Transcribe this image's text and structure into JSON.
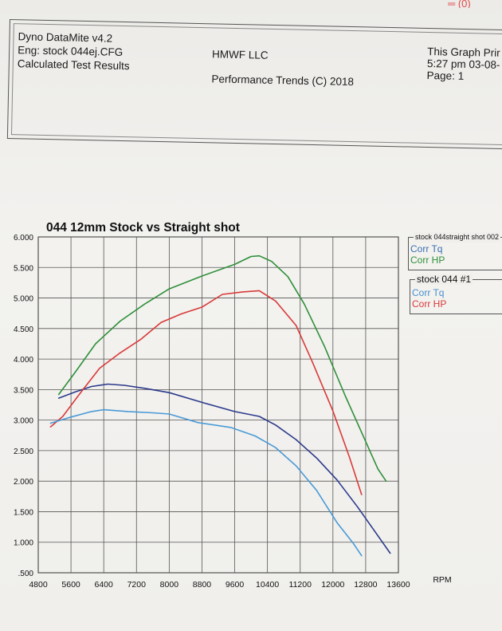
{
  "corner_mark": "═ (0)",
  "header": {
    "left_line1": "Dyno DataMite v4.2",
    "left_line2": "Eng: stock 044ej.CFG",
    "left_line3": "Calculated Test Results",
    "center_line1": "HMWF LLC",
    "center_line2": "Performance Trends (C) 2018",
    "right_line1": "This Graph Prir",
    "right_line2": "5:27 pm 03-08-",
    "right_line3": "Page: 1"
  },
  "legend": [
    {
      "title": "stock 044straight shot  002",
      "entries": [
        {
          "label": "Corr Tq",
          "color": "#3a6fb0"
        },
        {
          "label": "Corr HP",
          "color": "#2f8f3a"
        }
      ]
    },
    {
      "title": "stock 044   #1",
      "entries": [
        {
          "label": "Corr Tq",
          "color": "#4a90d0"
        },
        {
          "label": "Corr HP",
          "color": "#d83a3a"
        }
      ]
    }
  ],
  "chart_data": {
    "type": "line",
    "title": "044 12mm Stock vs Straight shot",
    "xlabel": "RPM",
    "ylabel": "",
    "xlim": [
      4800,
      13600
    ],
    "ylim": [
      0.5,
      6.0
    ],
    "xticks": [
      "4800",
      "5600",
      "6400",
      "7200",
      "8000",
      "8800",
      "9600",
      "10400",
      "11200",
      "12000",
      "12800",
      "13600"
    ],
    "yticks": [
      ".500",
      "1.000",
      "1.500",
      "2.000",
      "2.500",
      "3.000",
      "3.500",
      "4.000",
      "4.500",
      "5.000",
      "5.500",
      "6.000"
    ],
    "grid": true,
    "series": [
      {
        "name": "stock 044straight shot Corr HP",
        "color": "#2f8f3a",
        "points": [
          [
            5300,
            3.42
          ],
          [
            5700,
            3.78
          ],
          [
            6200,
            4.25
          ],
          [
            6800,
            4.62
          ],
          [
            7400,
            4.9
          ],
          [
            8000,
            5.15
          ],
          [
            8800,
            5.36
          ],
          [
            9600,
            5.55
          ],
          [
            10000,
            5.68
          ],
          [
            10200,
            5.69
          ],
          [
            10500,
            5.6
          ],
          [
            10900,
            5.35
          ],
          [
            11300,
            4.9
          ],
          [
            11800,
            4.2
          ],
          [
            12300,
            3.4
          ],
          [
            12800,
            2.65
          ],
          [
            13100,
            2.2
          ],
          [
            13300,
            2.0
          ]
        ]
      },
      {
        "name": "stock 044straight shot Corr Tq",
        "color": "#2c3a8c",
        "points": [
          [
            5300,
            3.36
          ],
          [
            5700,
            3.46
          ],
          [
            6100,
            3.55
          ],
          [
            6500,
            3.59
          ],
          [
            6900,
            3.57
          ],
          [
            7400,
            3.52
          ],
          [
            8000,
            3.45
          ],
          [
            8800,
            3.29
          ],
          [
            9600,
            3.14
          ],
          [
            10200,
            3.06
          ],
          [
            10600,
            2.92
          ],
          [
            11100,
            2.68
          ],
          [
            11600,
            2.38
          ],
          [
            12100,
            2.02
          ],
          [
            12600,
            1.58
          ],
          [
            13000,
            1.2
          ],
          [
            13400,
            0.82
          ]
        ]
      },
      {
        "name": "stock 044 #1 Corr HP",
        "color": "#d83a3a",
        "points": [
          [
            5100,
            2.89
          ],
          [
            5400,
            3.06
          ],
          [
            5800,
            3.42
          ],
          [
            6300,
            3.85
          ],
          [
            6800,
            4.1
          ],
          [
            7300,
            4.32
          ],
          [
            7800,
            4.6
          ],
          [
            8300,
            4.74
          ],
          [
            8800,
            4.85
          ],
          [
            9300,
            5.06
          ],
          [
            9800,
            5.1
          ],
          [
            10200,
            5.12
          ],
          [
            10600,
            4.95
          ],
          [
            11100,
            4.55
          ],
          [
            11500,
            3.95
          ],
          [
            12000,
            3.15
          ],
          [
            12400,
            2.4
          ],
          [
            12700,
            1.78
          ]
        ]
      },
      {
        "name": "stock 044 #1 Corr Tq",
        "color": "#4a9ad6",
        "points": [
          [
            5100,
            2.95
          ],
          [
            5600,
            3.05
          ],
          [
            6100,
            3.14
          ],
          [
            6400,
            3.17
          ],
          [
            7000,
            3.14
          ],
          [
            7600,
            3.12
          ],
          [
            8000,
            3.1
          ],
          [
            8700,
            2.96
          ],
          [
            9500,
            2.88
          ],
          [
            10100,
            2.74
          ],
          [
            10600,
            2.55
          ],
          [
            11100,
            2.25
          ],
          [
            11600,
            1.85
          ],
          [
            12100,
            1.32
          ],
          [
            12500,
            0.98
          ],
          [
            12700,
            0.78
          ]
        ]
      }
    ]
  }
}
